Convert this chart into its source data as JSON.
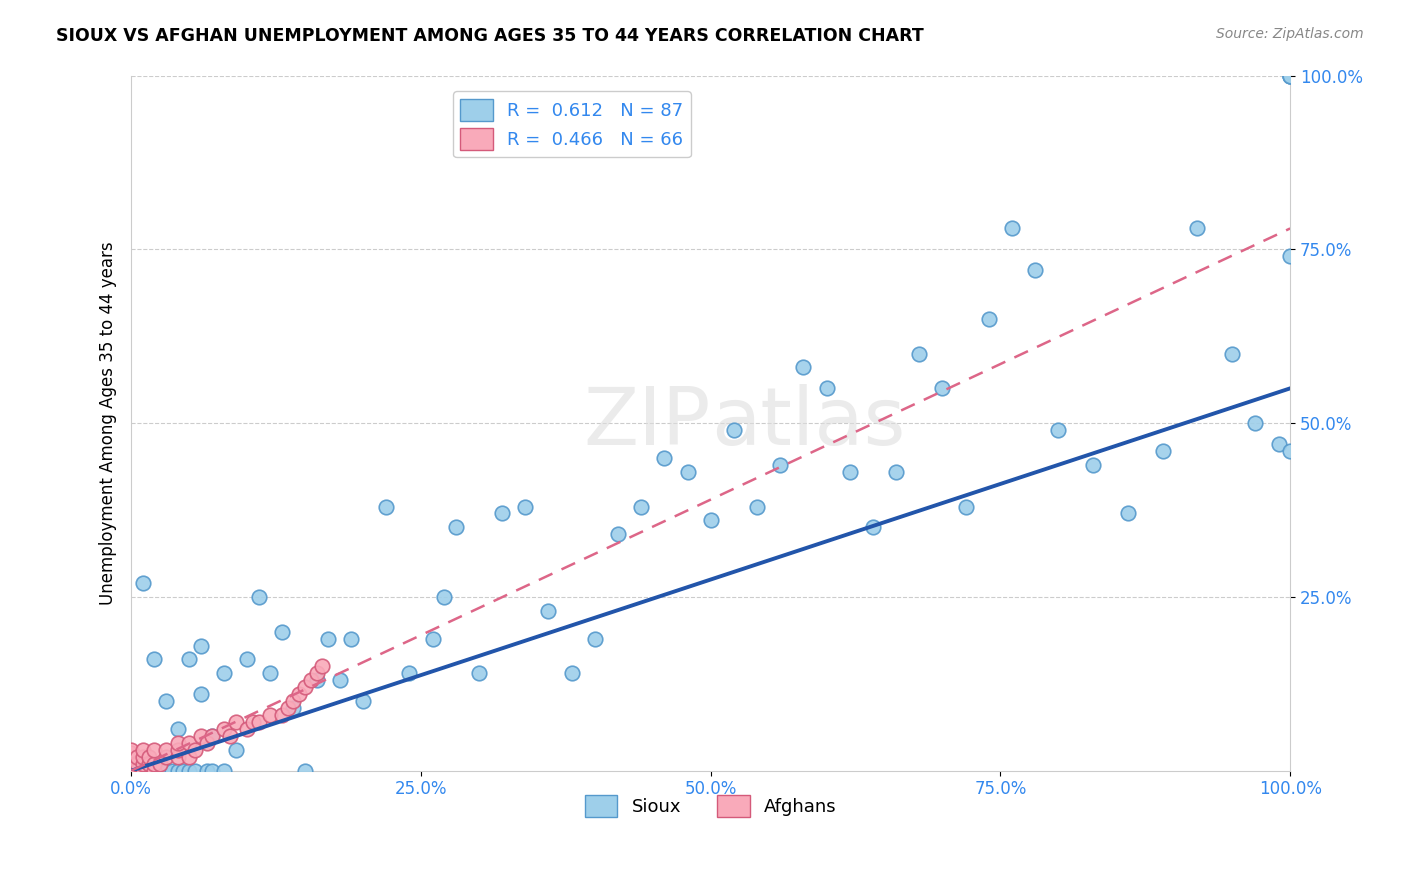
{
  "title": "SIOUX VS AFGHAN UNEMPLOYMENT AMONG AGES 35 TO 44 YEARS CORRELATION CHART",
  "source": "Source: ZipAtlas.com",
  "ylabel": "Unemployment Among Ages 35 to 44 years",
  "xlim": [
    0.0,
    1.0
  ],
  "ylim": [
    0.0,
    1.0
  ],
  "xticks": [
    0.0,
    0.25,
    0.5,
    0.75,
    1.0
  ],
  "yticks": [
    0.25,
    0.5,
    0.75,
    1.0
  ],
  "xticklabels": [
    "0.0%",
    "25.0%",
    "50.0%",
    "75.0%",
    "100.0%"
  ],
  "yticklabels": [
    "25.0%",
    "50.0%",
    "75.0%",
    "100.0%"
  ],
  "sioux_R": 0.612,
  "sioux_N": 87,
  "afghan_R": 0.466,
  "afghan_N": 66,
  "sioux_color": "#9ECFEA",
  "afghan_color": "#F9AABA",
  "sioux_edge_color": "#5599CC",
  "afghan_edge_color": "#D45A7A",
  "sioux_line_color": "#2255AA",
  "afghan_line_color": "#DD6688",
  "watermark_color": "#DEDEDE",
  "sioux_x": [
    0.0,
    0.0,
    0.0,
    0.0,
    0.0,
    0.0,
    0.005,
    0.005,
    0.01,
    0.01,
    0.01,
    0.015,
    0.02,
    0.02,
    0.025,
    0.03,
    0.03,
    0.03,
    0.035,
    0.04,
    0.04,
    0.045,
    0.05,
    0.05,
    0.055,
    0.06,
    0.06,
    0.065,
    0.07,
    0.07,
    0.08,
    0.08,
    0.09,
    0.1,
    0.11,
    0.12,
    0.13,
    0.14,
    0.15,
    0.16,
    0.17,
    0.18,
    0.19,
    0.2,
    0.22,
    0.24,
    0.26,
    0.27,
    0.28,
    0.3,
    0.32,
    0.34,
    0.36,
    0.38,
    0.4,
    0.42,
    0.44,
    0.46,
    0.48,
    0.5,
    0.52,
    0.54,
    0.56,
    0.58,
    0.6,
    0.62,
    0.64,
    0.66,
    0.68,
    0.7,
    0.72,
    0.74,
    0.76,
    0.78,
    0.8,
    0.83,
    0.86,
    0.89,
    0.92,
    0.95,
    0.97,
    0.99,
    1.0,
    1.0,
    1.0,
    1.0,
    1.0
  ],
  "sioux_y": [
    0.0,
    0.0,
    0.0,
    0.005,
    0.01,
    0.02,
    0.0,
    0.01,
    0.0,
    0.0,
    0.27,
    0.0,
    0.0,
    0.16,
    0.0,
    0.0,
    0.0,
    0.1,
    0.0,
    0.0,
    0.06,
    0.0,
    0.0,
    0.16,
    0.0,
    0.11,
    0.18,
    0.0,
    0.0,
    0.05,
    0.0,
    0.14,
    0.03,
    0.16,
    0.25,
    0.14,
    0.2,
    0.09,
    0.0,
    0.13,
    0.19,
    0.13,
    0.19,
    0.1,
    0.38,
    0.14,
    0.19,
    0.25,
    0.35,
    0.14,
    0.37,
    0.38,
    0.23,
    0.14,
    0.19,
    0.34,
    0.38,
    0.45,
    0.43,
    0.36,
    0.49,
    0.38,
    0.44,
    0.58,
    0.55,
    0.43,
    0.35,
    0.43,
    0.6,
    0.55,
    0.38,
    0.65,
    0.78,
    0.72,
    0.49,
    0.44,
    0.37,
    0.46,
    0.78,
    0.6,
    0.5,
    0.47,
    0.74,
    1.0,
    1.0,
    1.0,
    0.46
  ],
  "afghan_x": [
    0.0,
    0.0,
    0.0,
    0.0,
    0.0,
    0.0,
    0.0,
    0.0,
    0.0,
    0.0,
    0.0,
    0.0,
    0.0,
    0.0,
    0.0,
    0.0,
    0.0,
    0.0,
    0.0,
    0.0,
    0.0,
    0.0,
    0.0,
    0.0,
    0.0,
    0.005,
    0.005,
    0.005,
    0.005,
    0.01,
    0.01,
    0.01,
    0.01,
    0.01,
    0.015,
    0.015,
    0.02,
    0.02,
    0.02,
    0.025,
    0.03,
    0.03,
    0.04,
    0.04,
    0.04,
    0.05,
    0.05,
    0.055,
    0.06,
    0.065,
    0.07,
    0.08,
    0.085,
    0.09,
    0.1,
    0.105,
    0.11,
    0.12,
    0.13,
    0.135,
    0.14,
    0.145,
    0.15,
    0.155,
    0.16,
    0.165
  ],
  "afghan_y": [
    0.0,
    0.0,
    0.0,
    0.0,
    0.0,
    0.0,
    0.0,
    0.0,
    0.0,
    0.0,
    0.0,
    0.0,
    0.0,
    0.0,
    0.005,
    0.005,
    0.01,
    0.01,
    0.01,
    0.015,
    0.015,
    0.02,
    0.02,
    0.025,
    0.03,
    0.0,
    0.0,
    0.01,
    0.02,
    0.0,
    0.0,
    0.01,
    0.02,
    0.03,
    0.01,
    0.02,
    0.0,
    0.01,
    0.03,
    0.01,
    0.02,
    0.03,
    0.02,
    0.03,
    0.04,
    0.02,
    0.04,
    0.03,
    0.05,
    0.04,
    0.05,
    0.06,
    0.05,
    0.07,
    0.06,
    0.07,
    0.07,
    0.08,
    0.08,
    0.09,
    0.1,
    0.11,
    0.12,
    0.13,
    0.14,
    0.15
  ],
  "sioux_trend_x": [
    0.0,
    1.0
  ],
  "sioux_trend_y": [
    0.0,
    0.55
  ],
  "afghan_trend_x": [
    0.0,
    1.0
  ],
  "afghan_trend_y": [
    0.0,
    0.78
  ]
}
